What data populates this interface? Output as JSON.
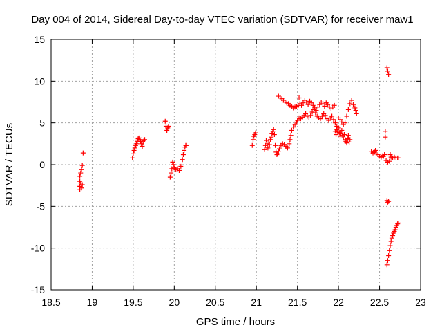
{
  "chart_data": {
    "type": "scatter",
    "title": "Day 004 of 2014, Sidereal Day-to-day VTEC variation (SDTVAR) for receiver maw1",
    "xlabel": "GPS time / hours",
    "ylabel": "SDTVAR / TECUs",
    "xlim": [
      18.5,
      23
    ],
    "ylim": [
      -15,
      15
    ],
    "xticks": [
      18.5,
      19,
      19.5,
      20,
      20.5,
      21,
      21.5,
      22,
      22.5,
      23
    ],
    "xtick_labels": [
      "18.5",
      "19",
      "19.5",
      "20",
      "20.5",
      "21",
      "21.5",
      "22",
      "22.5",
      "23"
    ],
    "yticks": [
      -15,
      -10,
      -5,
      0,
      5,
      10,
      15
    ],
    "ytick_labels": [
      "-15",
      "-10",
      "-5",
      "0",
      "5",
      "10",
      "15"
    ],
    "grid": true,
    "marker": "+",
    "series": [
      {
        "name": "SDTVAR",
        "color": "#ff0000",
        "points": [
          [
            18.85,
            -3.0
          ],
          [
            18.85,
            -2.6
          ],
          [
            18.85,
            -2.0
          ],
          [
            18.85,
            -1.4
          ],
          [
            18.86,
            -1.0
          ],
          [
            18.86,
            -2.2
          ],
          [
            18.87,
            -0.6
          ],
          [
            18.87,
            -2.8
          ],
          [
            18.88,
            -0.1
          ],
          [
            18.88,
            -2.4
          ],
          [
            18.89,
            1.4
          ],
          [
            19.49,
            0.8
          ],
          [
            19.5,
            1.3
          ],
          [
            19.51,
            1.7
          ],
          [
            19.52,
            2.0
          ],
          [
            19.53,
            2.3
          ],
          [
            19.54,
            2.5
          ],
          [
            19.55,
            2.8
          ],
          [
            19.56,
            3.1
          ],
          [
            19.57,
            3.2
          ],
          [
            19.58,
            3.0
          ],
          [
            19.59,
            2.8
          ],
          [
            19.6,
            2.5
          ],
          [
            19.61,
            2.2
          ],
          [
            19.62,
            2.7
          ],
          [
            19.63,
            2.9
          ],
          [
            19.64,
            3.0
          ],
          [
            19.89,
            5.2
          ],
          [
            19.9,
            4.6
          ],
          [
            19.91,
            4.1
          ],
          [
            19.92,
            4.4
          ],
          [
            19.93,
            4.6
          ],
          [
            19.95,
            -1.5
          ],
          [
            19.96,
            -1.0
          ],
          [
            19.97,
            -0.5
          ],
          [
            19.98,
            0.3
          ],
          [
            19.99,
            0.0
          ],
          [
            20.0,
            -0.4
          ],
          [
            20.02,
            -0.6
          ],
          [
            20.04,
            -0.5
          ],
          [
            20.06,
            -0.7
          ],
          [
            20.08,
            -0.2
          ],
          [
            20.1,
            0.6
          ],
          [
            20.11,
            1.2
          ],
          [
            20.12,
            1.7
          ],
          [
            20.13,
            2.1
          ],
          [
            20.14,
            2.3
          ],
          [
            20.15,
            2.3
          ],
          [
            20.95,
            2.3
          ],
          [
            20.96,
            3.0
          ],
          [
            20.97,
            3.4
          ],
          [
            20.98,
            3.6
          ],
          [
            20.99,
            3.8
          ],
          [
            21.1,
            1.8
          ],
          [
            21.11,
            2.3
          ],
          [
            21.12,
            2.9
          ],
          [
            21.13,
            2.5
          ],
          [
            21.14,
            2.0
          ],
          [
            21.15,
            2.7
          ],
          [
            21.16,
            2.4
          ],
          [
            21.17,
            3.0
          ],
          [
            21.18,
            3.3
          ],
          [
            21.19,
            3.7
          ],
          [
            21.2,
            4.0
          ],
          [
            21.21,
            4.2
          ],
          [
            21.22,
            3.6
          ],
          [
            21.23,
            2.3
          ],
          [
            21.24,
            1.5
          ],
          [
            21.25,
            1.2
          ],
          [
            21.26,
            1.3
          ],
          [
            21.27,
            1.6
          ],
          [
            21.28,
            1.9
          ],
          [
            21.3,
            2.3
          ],
          [
            21.32,
            2.5
          ],
          [
            21.34,
            2.4
          ],
          [
            21.36,
            2.2
          ],
          [
            21.38,
            2.0
          ],
          [
            21.4,
            2.5
          ],
          [
            21.41,
            3.0
          ],
          [
            21.42,
            3.5
          ],
          [
            21.43,
            4.1
          ],
          [
            21.45,
            4.5
          ],
          [
            21.47,
            4.8
          ],
          [
            21.49,
            5.1
          ],
          [
            21.5,
            5.3
          ],
          [
            21.27,
            8.2
          ],
          [
            21.29,
            8.0
          ],
          [
            21.31,
            7.9
          ],
          [
            21.33,
            7.7
          ],
          [
            21.35,
            7.5
          ],
          [
            21.37,
            7.4
          ],
          [
            21.39,
            7.3
          ],
          [
            21.41,
            7.1
          ],
          [
            21.43,
            7.0
          ],
          [
            21.45,
            6.8
          ],
          [
            21.47,
            6.9
          ],
          [
            21.49,
            7.0
          ],
          [
            21.51,
            7.1
          ],
          [
            21.53,
            7.3
          ],
          [
            21.55,
            7.1
          ],
          [
            21.57,
            7.4
          ],
          [
            21.59,
            7.7
          ],
          [
            21.61,
            7.5
          ],
          [
            21.63,
            7.2
          ],
          [
            21.65,
            7.6
          ],
          [
            21.67,
            7.4
          ],
          [
            21.69,
            7.1
          ],
          [
            21.71,
            6.8
          ],
          [
            21.73,
            6.5
          ],
          [
            21.75,
            6.9
          ],
          [
            21.77,
            7.2
          ],
          [
            21.79,
            7.5
          ],
          [
            21.81,
            7.3
          ],
          [
            21.83,
            7.0
          ],
          [
            21.85,
            7.4
          ],
          [
            21.87,
            7.2
          ],
          [
            21.89,
            6.9
          ],
          [
            21.91,
            6.7
          ],
          [
            21.93,
            6.9
          ],
          [
            21.95,
            7.1
          ],
          [
            21.52,
            8.0
          ],
          [
            21.52,
            5.6
          ],
          [
            21.54,
            5.5
          ],
          [
            21.56,
            5.7
          ],
          [
            21.58,
            5.9
          ],
          [
            21.6,
            6.1
          ],
          [
            21.62,
            5.8
          ],
          [
            21.64,
            5.6
          ],
          [
            21.66,
            5.9
          ],
          [
            21.68,
            6.3
          ],
          [
            21.7,
            6.6
          ],
          [
            21.72,
            6.2
          ],
          [
            21.74,
            5.8
          ],
          [
            21.76,
            5.6
          ],
          [
            21.78,
            5.5
          ],
          [
            21.8,
            5.8
          ],
          [
            21.82,
            6.1
          ],
          [
            21.84,
            5.9
          ],
          [
            21.86,
            5.5
          ],
          [
            21.88,
            5.3
          ],
          [
            21.9,
            5.6
          ],
          [
            21.92,
            5.8
          ],
          [
            21.94,
            5.4
          ],
          [
            21.96,
            5.0
          ],
          [
            21.98,
            4.6
          ],
          [
            21.96,
            4.0
          ],
          [
            21.97,
            3.6
          ],
          [
            21.98,
            4.2
          ],
          [
            21.99,
            3.9
          ],
          [
            22.0,
            4.4
          ],
          [
            22.01,
            3.8
          ],
          [
            22.02,
            3.4
          ],
          [
            22.03,
            3.7
          ],
          [
            22.04,
            4.1
          ],
          [
            22.05,
            3.5
          ],
          [
            22.06,
            3.2
          ],
          [
            22.07,
            3.6
          ],
          [
            22.08,
            3.0
          ],
          [
            22.09,
            2.8
          ],
          [
            22.1,
            2.6
          ],
          [
            22.11,
            3.1
          ],
          [
            22.12,
            3.5
          ],
          [
            22.13,
            2.7
          ],
          [
            22.14,
            3.0
          ],
          [
            22.0,
            5.6
          ],
          [
            22.02,
            5.4
          ],
          [
            22.04,
            5.1
          ],
          [
            22.06,
            4.8
          ],
          [
            22.08,
            5.0
          ],
          [
            22.1,
            5.8
          ],
          [
            22.12,
            6.6
          ],
          [
            22.14,
            7.3
          ],
          [
            22.16,
            7.7
          ],
          [
            22.18,
            7.2
          ],
          [
            22.2,
            6.8
          ],
          [
            22.21,
            6.5
          ],
          [
            22.22,
            6.1
          ],
          [
            22.4,
            1.6
          ],
          [
            22.42,
            1.4
          ],
          [
            22.44,
            1.5
          ],
          [
            22.45,
            1.7
          ],
          [
            22.46,
            1.3
          ],
          [
            22.48,
            1.2
          ],
          [
            22.5,
            1.0
          ],
          [
            22.52,
            0.9
          ],
          [
            22.54,
            1.1
          ],
          [
            22.55,
            1.0
          ],
          [
            22.56,
            1.2
          ],
          [
            22.57,
            4.0
          ],
          [
            22.57,
            3.3
          ],
          [
            22.58,
            0.5
          ],
          [
            22.6,
            0.3
          ],
          [
            22.62,
            0.4
          ],
          [
            22.63,
            1.2
          ],
          [
            22.64,
            0.9
          ],
          [
            22.66,
            0.8
          ],
          [
            22.68,
            0.9
          ],
          [
            22.7,
            0.8
          ],
          [
            22.72,
            0.8
          ],
          [
            22.73,
            0.8
          ],
          [
            22.59,
            11.6
          ],
          [
            22.6,
            11.2
          ],
          [
            22.61,
            10.8
          ],
          [
            22.59,
            -4.3
          ],
          [
            22.6,
            -4.5
          ],
          [
            22.61,
            -4.4
          ],
          [
            22.59,
            -12.0
          ],
          [
            22.6,
            -11.5
          ],
          [
            22.61,
            -10.9
          ],
          [
            22.62,
            -10.3
          ],
          [
            22.63,
            -9.7
          ],
          [
            22.64,
            -9.2
          ],
          [
            22.65,
            -8.8
          ],
          [
            22.66,
            -8.5
          ],
          [
            22.67,
            -8.2
          ],
          [
            22.68,
            -8.0
          ],
          [
            22.69,
            -7.8
          ],
          [
            22.7,
            -7.5
          ],
          [
            22.71,
            -7.3
          ],
          [
            22.72,
            -7.1
          ],
          [
            22.73,
            -7.0
          ]
        ]
      }
    ]
  },
  "colors": {
    "marker": "#ff0000",
    "grid": "#a0a0a0",
    "axis": "#000000",
    "background": "#ffffff"
  }
}
